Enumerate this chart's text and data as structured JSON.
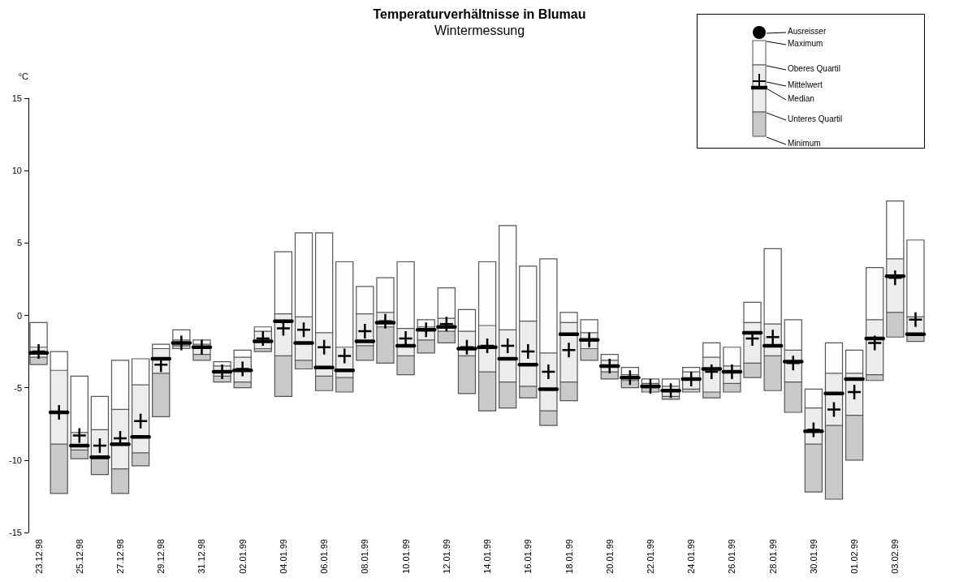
{
  "chart_data": {
    "type": "box",
    "title": "Temperaturverhältnisse in Blumau",
    "subtitle": "Wintermessung",
    "ylabel": "°C",
    "categories": [
      "23.12.98",
      null,
      "25.12.98",
      null,
      "27.12.98",
      null,
      "29.12.98",
      null,
      "31.12.98",
      null,
      "02.01.99",
      null,
      "04.01.99",
      null,
      "06.01.99",
      null,
      "08.01.99",
      null,
      "10.01.99",
      null,
      "12.01.99",
      null,
      "14.01.99",
      null,
      "16.01.99",
      null,
      "18.01.99",
      null,
      "20.01.99",
      null,
      "22.01.99",
      null,
      "24.01.99",
      null,
      "26.01.99",
      null,
      "28.01.99",
      null,
      "30.01.99",
      null,
      "01.02.99",
      null,
      "03.02.99",
      null
    ],
    "ylim": [
      -15,
      15
    ],
    "yticks": [
      -15,
      -10,
      -5,
      0,
      5,
      10,
      15
    ],
    "grid": false,
    "annotations": [
      "Ausreisser",
      "Maximum",
      "Oberes Quartil",
      "Mittelwert",
      "Median",
      "Unteres Quartil",
      "Minimum"
    ],
    "boxes": [
      {
        "low": -3.4,
        "q1": -2.9,
        "median": -2.6,
        "q3": -2.2,
        "high": -0.5,
        "mean": -2.5
      },
      {
        "low": -12.3,
        "q1": -8.9,
        "median": -6.7,
        "q3": -3.8,
        "high": -2.5,
        "mean": -6.7
      },
      {
        "low": -9.9,
        "q1": -9.3,
        "median": -9.0,
        "q3": -8.1,
        "high": -4.2,
        "mean": -8.3
      },
      {
        "low": -11.0,
        "q1": -9.9,
        "median": -9.8,
        "q3": -7.9,
        "high": -5.6,
        "mean": -9.0
      },
      {
        "low": -12.3,
        "q1": -10.6,
        "median": -8.9,
        "q3": -6.5,
        "high": -3.1,
        "mean": -8.5
      },
      {
        "low": -10.4,
        "q1": -9.5,
        "median": -8.4,
        "q3": -4.8,
        "high": -3.0,
        "mean": -7.3
      },
      {
        "low": -7.0,
        "q1": -4.0,
        "median": -3.0,
        "q3": -2.3,
        "high": -2.0,
        "mean": -3.4
      },
      {
        "low": -2.3,
        "q1": -2.1,
        "median": -1.9,
        "q3": -1.7,
        "high": -1.0,
        "mean": -1.9
      },
      {
        "low": -3.1,
        "q1": -2.7,
        "median": -2.2,
        "q3": -2.0,
        "high": -1.7,
        "mean": -2.2
      },
      {
        "low": -4.6,
        "q1": -4.2,
        "median": -3.9,
        "q3": -3.5,
        "high": -3.2,
        "mean": -3.9
      },
      {
        "low": -5.0,
        "q1": -4.6,
        "median": -3.8,
        "q3": -2.9,
        "high": -2.4,
        "mean": -3.7
      },
      {
        "low": -2.5,
        "q1": -2.3,
        "median": -1.8,
        "q3": -1.1,
        "high": -0.8,
        "mean": -1.6
      },
      {
        "low": -5.6,
        "q1": -2.8,
        "median": -0.4,
        "q3": 0.1,
        "high": 4.4,
        "mean": -0.9
      },
      {
        "low": -3.7,
        "q1": -3.1,
        "median": -1.9,
        "q3": -0.1,
        "high": 5.7,
        "mean": -1.0
      },
      {
        "low": -5.2,
        "q1": -4.2,
        "median": -3.6,
        "q3": -1.2,
        "high": 5.7,
        "mean": -2.2
      },
      {
        "low": -5.3,
        "q1": -4.3,
        "median": -3.8,
        "q3": -2.2,
        "high": 3.7,
        "mean": -2.8
      },
      {
        "low": -3.1,
        "q1": -2.1,
        "median": -1.8,
        "q3": 0.1,
        "high": 2.0,
        "mean": -1.1
      },
      {
        "low": -3.3,
        "q1": -0.8,
        "median": -0.5,
        "q3": 0.2,
        "high": 2.6,
        "mean": -0.4
      },
      {
        "low": -4.1,
        "q1": -2.8,
        "median": -2.1,
        "q3": -0.9,
        "high": 3.7,
        "mean": -1.6
      },
      {
        "low": -2.6,
        "q1": -1.7,
        "median": -1.0,
        "q3": -0.8,
        "high": -0.3,
        "mean": -1.0
      },
      {
        "low": -1.9,
        "q1": -1.1,
        "median": -0.8,
        "q3": -0.2,
        "high": 1.9,
        "mean": -0.6
      },
      {
        "low": -5.4,
        "q1": -2.8,
        "median": -2.3,
        "q3": -1.1,
        "high": 0.4,
        "mean": -2.2
      },
      {
        "low": -6.6,
        "q1": -3.9,
        "median": -2.2,
        "q3": -0.7,
        "high": 3.7,
        "mean": -2.1
      },
      {
        "low": -6.4,
        "q1": -4.6,
        "median": -3.0,
        "q3": -1.0,
        "high": 6.2,
        "mean": -2.1
      },
      {
        "low": -5.7,
        "q1": -4.9,
        "median": -3.4,
        "q3": -0.4,
        "high": 3.4,
        "mean": -2.5
      },
      {
        "low": -7.6,
        "q1": -6.6,
        "median": -5.1,
        "q3": -2.6,
        "high": 3.9,
        "mean": -3.9
      },
      {
        "low": -5.9,
        "q1": -4.6,
        "median": -1.3,
        "q3": -0.5,
        "high": 0.2,
        "mean": -2.4
      },
      {
        "low": -3.1,
        "q1": -2.3,
        "median": -1.7,
        "q3": -1.2,
        "high": -0.3,
        "mean": -1.7
      },
      {
        "low": -4.4,
        "q1": -3.9,
        "median": -3.5,
        "q3": -3.1,
        "high": -2.7,
        "mean": -3.5
      },
      {
        "low": -5.0,
        "q1": -4.5,
        "median": -4.3,
        "q3": -4.1,
        "high": -3.6,
        "mean": -4.3
      },
      {
        "low": -5.3,
        "q1": -5.0,
        "median": -4.9,
        "q3": -4.7,
        "high": -4.4,
        "mean": -4.9
      },
      {
        "low": -5.8,
        "q1": -5.6,
        "median": -5.2,
        "q3": -4.9,
        "high": -4.4,
        "mean": -5.2
      },
      {
        "low": -5.3,
        "q1": -5.1,
        "median": -4.4,
        "q3": -3.9,
        "high": -3.6,
        "mean": -4.4
      },
      {
        "low": -5.7,
        "q1": -5.3,
        "median": -3.7,
        "q3": -2.9,
        "high": -1.9,
        "mean": -3.9
      },
      {
        "low": -5.3,
        "q1": -4.7,
        "median": -3.9,
        "q3": -3.5,
        "high": -2.2,
        "mean": -3.9
      },
      {
        "low": -4.3,
        "q1": -3.3,
        "median": -1.2,
        "q3": -0.5,
        "high": 0.9,
        "mean": -1.6
      },
      {
        "low": -5.2,
        "q1": -2.8,
        "median": -2.1,
        "q3": -0.6,
        "high": 4.6,
        "mean": -1.5
      },
      {
        "low": -6.7,
        "q1": -4.6,
        "median": -3.2,
        "q3": -2.4,
        "high": -0.3,
        "mean": -3.3
      },
      {
        "low": -12.2,
        "q1": -8.9,
        "median": -8.0,
        "q3": -6.4,
        "high": -5.1,
        "mean": -7.9
      },
      {
        "low": -12.7,
        "q1": -7.6,
        "median": -5.4,
        "q3": -4.0,
        "high": -1.9,
        "mean": -6.5
      },
      {
        "low": -10.0,
        "q1": -6.9,
        "median": -4.4,
        "q3": -4.0,
        "high": -2.4,
        "mean": -5.3
      },
      {
        "low": -4.5,
        "q1": -4.1,
        "median": -1.6,
        "q3": -0.3,
        "high": 3.3,
        "mean": -1.9
      },
      {
        "low": -1.5,
        "q1": 0.2,
        "median": 2.7,
        "q3": 3.9,
        "high": 7.9,
        "mean": 2.6
      },
      {
        "low": -1.8,
        "q1": -1.4,
        "median": -1.3,
        "q3": -0.1,
        "high": 5.2,
        "mean": -0.3
      }
    ]
  }
}
